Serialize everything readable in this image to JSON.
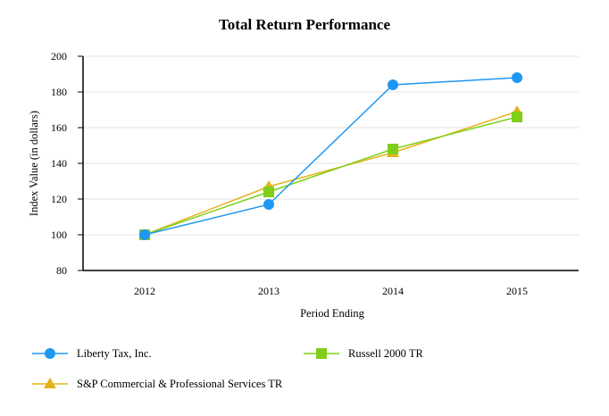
{
  "chart_data": {
    "type": "line",
    "title": "Total Return Performance",
    "xlabel": "Period Ending",
    "ylabel": "Index Value (in dollars)",
    "categories": [
      "2012",
      "2013",
      "2014",
      "2015"
    ],
    "yticks": [
      80,
      100,
      120,
      140,
      160,
      180,
      200
    ],
    "ylim": [
      80,
      200
    ],
    "grid": "horizontal",
    "legend_position": "bottom",
    "series": [
      {
        "name": "Liberty Tax, Inc.",
        "values": [
          100,
          117,
          184,
          188
        ],
        "color": "#1f97f0",
        "marker": "circle"
      },
      {
        "name": "Russell 2000 TR",
        "values": [
          100,
          124,
          148,
          166
        ],
        "color": "#7fcf1a",
        "marker": "square"
      },
      {
        "name": "S&P Commercial & Professional Services TR",
        "values": [
          100,
          127,
          146,
          169
        ],
        "color": "#e5b21c",
        "marker": "triangle"
      }
    ]
  }
}
